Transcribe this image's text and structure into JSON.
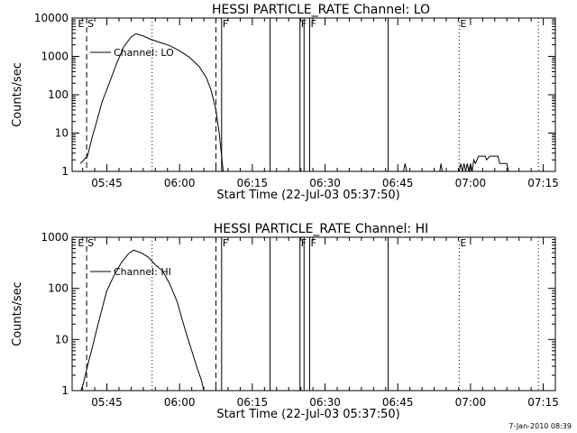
{
  "footer": "7-Jan-2010 08:39",
  "chart_data": [
    {
      "type": "line",
      "title": "HESSI PARTICLE_RATE Channel: LO",
      "xlabel": "Start Time (22-Jul-03 05:37:50)",
      "ylabel": "Counts/sec",
      "y_scale": "log",
      "ylim": [
        1,
        10000
      ],
      "xlim": [
        "05:37:50",
        "07:17:30"
      ],
      "x_ticks": [
        "05:45",
        "06:00",
        "06:15",
        "06:30",
        "06:45",
        "07:00",
        "07:15"
      ],
      "y_ticks": [
        "1",
        "10",
        "100",
        "1000",
        "10000"
      ],
      "legend": [
        "Channel: LO"
      ],
      "legend_position": "upper-left",
      "series": [
        {
          "values": [
            [
              "05:39:30",
              1.6
            ],
            [
              "05:41:00",
              2.5
            ],
            [
              "05:42:00",
              8
            ],
            [
              "05:43:00",
              22
            ],
            [
              "05:44:00",
              65
            ],
            [
              "05:45:30",
              200
            ],
            [
              "05:47:00",
              650
            ],
            [
              "05:48:30",
              1800
            ],
            [
              "05:50:00",
              3200
            ],
            [
              "05:51:00",
              3900
            ],
            [
              "05:52:30",
              3400
            ],
            [
              "05:54:00",
              2800
            ],
            [
              "05:56:00",
              2300
            ],
            [
              "05:58:00",
              1900
            ],
            [
              "06:00:00",
              1400
            ],
            [
              "06:02:00",
              950
            ],
            [
              "06:04:00",
              550
            ],
            [
              "06:05:30",
              280
            ],
            [
              "06:06:30",
              130
            ],
            [
              "06:07:30",
              40
            ],
            [
              "06:08:10",
              10
            ],
            [
              "06:08:40",
              2.5
            ],
            [
              "06:09:00",
              1
            ]
          ]
        },
        {
          "values": [
            [
              "06:46:10",
              1
            ],
            [
              "06:46:30",
              1.6
            ],
            [
              "06:46:50",
              1
            ],
            [
              "06:53:40",
              1
            ],
            [
              "06:53:55",
              1.6
            ],
            [
              "06:54:10",
              1
            ],
            [
              "06:57:40",
              1
            ],
            [
              "06:58:00",
              1.6
            ],
            [
              "06:58:20",
              1
            ],
            [
              "06:58:40",
              1.6
            ],
            [
              "06:59:00",
              1
            ],
            [
              "06:59:20",
              1.6
            ],
            [
              "06:59:40",
              1
            ],
            [
              "07:00:00",
              1.6
            ],
            [
              "07:00:20",
              1
            ],
            [
              "07:00:40",
              2
            ],
            [
              "07:01:00",
              1.6
            ],
            [
              "07:01:20",
              2
            ],
            [
              "07:01:40",
              2.5
            ],
            [
              "07:03:00",
              2.5
            ],
            [
              "07:03:20",
              2
            ],
            [
              "07:04:00",
              2.5
            ],
            [
              "07:05:40",
              2.5
            ],
            [
              "07:06:00",
              1.6
            ],
            [
              "07:07:30",
              1.6
            ],
            [
              "07:07:50",
              1
            ]
          ]
        }
      ],
      "solid_markers": [
        "06:08:40",
        "06:18:40",
        "06:24:50",
        "06:25:40",
        "06:26:50",
        "06:43:00"
      ],
      "dashed_markers": [
        "05:40:50",
        "06:07:30"
      ],
      "dotted_markers": [
        "05:54:20",
        "06:57:40",
        "07:14:00"
      ],
      "flags": [
        {
          "label": "E",
          "x": "05:38:50"
        },
        {
          "label": "S",
          "x": "05:40:50"
        },
        {
          "label": "F",
          "x": "06:08:40"
        },
        {
          "label": "F",
          "x": "06:24:50"
        },
        {
          "label": "F",
          "x": "06:26:50"
        },
        {
          "label": "E",
          "x": "06:57:40"
        }
      ]
    },
    {
      "type": "line",
      "title": "HESSI PARTICLE_RATE Channel: HI",
      "xlabel": "Start Time (22-Jul-03 05:37:50)",
      "ylabel": "Counts/sec",
      "y_scale": "log",
      "ylim": [
        1,
        1000
      ],
      "xlim": [
        "05:37:50",
        "07:17:30"
      ],
      "x_ticks": [
        "05:45",
        "06:00",
        "06:15",
        "06:30",
        "06:45",
        "07:00",
        "07:15"
      ],
      "y_ticks": [
        "1",
        "10",
        "100",
        "1000"
      ],
      "legend": [
        "Channel: HI"
      ],
      "legend_position": "upper-left",
      "series": [
        {
          "values": [
            [
              "05:39:40",
              1
            ],
            [
              "05:40:10",
              1.4
            ],
            [
              "05:41:00",
              3
            ],
            [
              "05:42:00",
              7
            ],
            [
              "05:43:00",
              17
            ],
            [
              "05:44:00",
              40
            ],
            [
              "05:45:00",
              90
            ],
            [
              "05:46:30",
              180
            ],
            [
              "05:48:00",
              320
            ],
            [
              "05:49:30",
              480
            ],
            [
              "05:50:30",
              560
            ],
            [
              "05:52:00",
              500
            ],
            [
              "05:53:30",
              410
            ],
            [
              "05:55:00",
              290
            ],
            [
              "05:56:30",
              220
            ],
            [
              "05:58:00",
              120
            ],
            [
              "05:59:30",
              55
            ],
            [
              "06:00:30",
              25
            ],
            [
              "06:01:30",
              12
            ],
            [
              "06:02:30",
              6
            ],
            [
              "06:03:30",
              3
            ],
            [
              "06:04:30",
              1.6
            ],
            [
              "06:05:00",
              1
            ]
          ]
        }
      ],
      "solid_markers": [
        "06:08:40",
        "06:18:40",
        "06:24:50",
        "06:25:40",
        "06:26:50",
        "06:43:00"
      ],
      "dashed_markers": [
        "05:40:50",
        "06:07:30"
      ],
      "dotted_markers": [
        "05:54:20",
        "06:57:40",
        "07:14:00"
      ],
      "flags": [
        {
          "label": "E",
          "x": "05:38:50"
        },
        {
          "label": "S",
          "x": "05:40:50"
        },
        {
          "label": "F",
          "x": "06:08:40"
        },
        {
          "label": "F",
          "x": "06:24:50"
        },
        {
          "label": "F",
          "x": "06:26:50"
        },
        {
          "label": "E",
          "x": "06:57:40"
        }
      ]
    }
  ]
}
